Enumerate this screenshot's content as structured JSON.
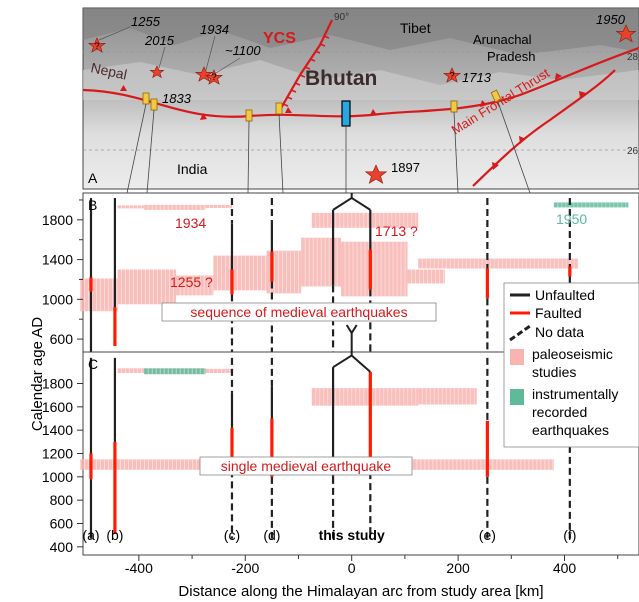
{
  "map": {
    "panel_label": "A",
    "labels": {
      "tibet": "Tibet",
      "bhutan": "Bhutan",
      "india": "India",
      "nepal": "Nepal",
      "arunachal": "Arunachal",
      "pradesh": "Pradesh",
      "ycs": "YCS",
      "mft": "Main Frontal Thrust",
      "angle": "90°",
      "lat_28": "28",
      "lat_26": "26"
    },
    "events": [
      "1255",
      "2015",
      "1934",
      "~1100",
      "1833",
      "1713",
      "1897",
      "1950"
    ],
    "colors": {
      "fault": "#d7191c",
      "star": "#e8412c",
      "site": "#f5c842",
      "study_site": "#29a8e0"
    }
  },
  "legend": {
    "unfaulted": "Unfaulted",
    "faulted": "Faulted",
    "no_data": "No data",
    "paleo_line1": "paleoseismic",
    "paleo_line2": "studies",
    "instr_line1": "instrumentally",
    "instr_line2": "recorded",
    "instr_line3": "earthquakes"
  },
  "panel_b": {
    "label": "B",
    "annotations": {
      "e1934": "1934",
      "e1713": "1713 ?",
      "e1950": "1950",
      "e1255": "1255 ?",
      "box": "sequence of medieval earthquakes"
    }
  },
  "panel_c": {
    "label": "C",
    "annotations": {
      "box": "single medieval earthquake"
    }
  },
  "site_labels": [
    "(a)",
    "(b)",
    "(c)",
    "(d)",
    "this study",
    "(e)",
    "(f)"
  ],
  "chart_data": {
    "type": "timeline",
    "xlabel": "Distance along the Himalayan arc from study area [km]",
    "ylabel": "Calendar age AD",
    "xticks": [
      -400,
      -200,
      0,
      200,
      400
    ],
    "yticks_b": [
      600,
      1000,
      1400,
      1800
    ],
    "yticks_c": [
      400,
      600,
      800,
      1000,
      1200,
      1400,
      1600,
      1800
    ],
    "xlim": [
      -505,
      540
    ],
    "ylim_b": [
      470,
      2070
    ],
    "ylim_c": [
      330,
      2070
    ],
    "colors": {
      "unfaulted": "#231f20",
      "faulted": "#ff1a00",
      "paleo": "#f8b4b0",
      "instrumental": "#5fba9a"
    },
    "sites": [
      {
        "name": "(a)",
        "x": -490,
        "b": [
          [
            "u",
            470,
            1080
          ],
          [
            "f",
            1080,
            1220
          ],
          [
            "u",
            1220,
            2020
          ]
        ],
        "c": [
          [
            "u",
            470,
            980
          ],
          [
            "f",
            980,
            1200
          ],
          [
            "u",
            1200,
            2020
          ]
        ]
      },
      {
        "name": "(b)",
        "x": -445,
        "b": [
          [
            "f",
            530,
            920
          ],
          [
            "u",
            920,
            2020
          ]
        ],
        "c": [
          [
            "f",
            510,
            1300
          ],
          [
            "u",
            1300,
            2020
          ]
        ]
      },
      {
        "name": "(c)",
        "x": -225,
        "b": [
          [
            "n",
            470,
            1050
          ],
          [
            "f",
            1050,
            1300
          ],
          [
            "u",
            1300,
            1760
          ],
          [
            "n",
            1760,
            2020
          ]
        ],
        "c": [
          [
            "n",
            470,
            1150
          ],
          [
            "f",
            1150,
            1420
          ],
          [
            "u",
            1420,
            1720
          ],
          [
            "n",
            1720,
            2020
          ]
        ]
      },
      {
        "name": "(d)",
        "x": -150,
        "b": [
          [
            "n",
            470,
            1180
          ],
          [
            "f",
            1180,
            1480
          ],
          [
            "u",
            1480,
            1780
          ],
          [
            "n",
            1780,
            2020
          ]
        ],
        "c": [
          [
            "n",
            470,
            1000
          ],
          [
            "f",
            1000,
            1500
          ],
          [
            "u",
            1500,
            1770
          ],
          [
            "n",
            1770,
            2020
          ]
        ]
      },
      {
        "name": "this study W",
        "x": -35,
        "b": [
          [
            "n",
            470,
            1140
          ],
          [
            "u",
            1140,
            1900
          ]
        ],
        "c": [
          [
            "n",
            470,
            1000
          ],
          [
            "u",
            1000,
            1940
          ]
        ]
      },
      {
        "name": "this study E",
        "x": 35,
        "b": [
          [
            "n",
            470,
            1100
          ],
          [
            "f",
            1100,
            1500
          ],
          [
            "u",
            1500,
            1900
          ]
        ],
        "c": [
          [
            "n",
            470,
            1040
          ],
          [
            "f",
            1040,
            1900
          ]
        ]
      },
      {
        "name": "(e)",
        "x": 255,
        "b": [
          [
            "n",
            470,
            1010
          ],
          [
            "f",
            1010,
            1310
          ],
          [
            "n",
            1310,
            2020
          ]
        ],
        "c": [
          [
            "n",
            470,
            1000
          ],
          [
            "f",
            1000,
            1480
          ],
          [
            "n",
            1480,
            2020
          ]
        ]
      },
      {
        "name": "(f)",
        "x": 410,
        "b": [
          [
            "n",
            470,
            1230
          ],
          [
            "f",
            1230,
            1330
          ],
          [
            "n",
            1330,
            2020
          ]
        ],
        "c": [
          [
            "n",
            470,
            2020
          ]
        ]
      }
    ],
    "paleo_b": [
      [
        -510,
        -440,
        880,
        1210
      ],
      [
        -440,
        -330,
        950,
        1300
      ],
      [
        -330,
        -260,
        1040,
        1240
      ],
      [
        -260,
        -160,
        1090,
        1440
      ],
      [
        -160,
        -95,
        1060,
        1490
      ],
      [
        -95,
        -20,
        1130,
        1620
      ],
      [
        -20,
        105,
        1030,
        1580
      ],
      [
        105,
        175,
        1160,
        1300
      ],
      [
        125,
        425,
        1310,
        1410
      ],
      [
        -75,
        125,
        1720,
        1870
      ],
      [
        -440,
        -390,
        1915,
        1945
      ],
      [
        -390,
        -275,
        1900,
        1950
      ],
      [
        -275,
        -225,
        1920,
        1950
      ]
    ],
    "paleo_c": [
      [
        -510,
        115,
        1060,
        1150
      ],
      [
        115,
        380,
        1060,
        1150
      ],
      [
        -75,
        125,
        1610,
        1760
      ],
      [
        125,
        235,
        1620,
        1760
      ],
      [
        -440,
        -390,
        1890,
        1930
      ],
      [
        -390,
        -275,
        1880,
        1930
      ],
      [
        -275,
        -225,
        1890,
        1925
      ]
    ],
    "instrumental_b": [
      [
        380,
        520,
        1925,
        1975
      ]
    ],
    "instrumental_c": [
      [
        -390,
        -275,
        1880,
        1930
      ]
    ]
  }
}
